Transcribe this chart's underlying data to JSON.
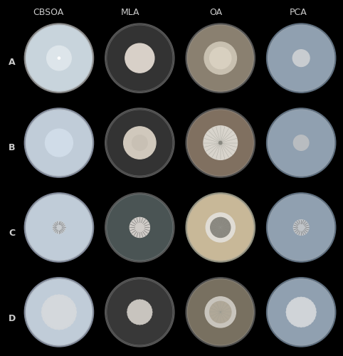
{
  "background_color": "#000000",
  "col_headers": [
    "CBSOA",
    "MLA",
    "OA",
    "PCA"
  ],
  "row_labels": [
    "A",
    "B",
    "C",
    "D"
  ],
  "header_color": "#cccccc",
  "label_color": "#cccccc",
  "header_fontsize": 9,
  "label_fontsize": 9,
  "petri_dishes": [
    [
      {
        "dish_color": "#b8c4cc",
        "dish_rim": "#888888",
        "agar_color": "#c8d4dc",
        "colony_color": "#dde5ea",
        "colony_r": 0.32,
        "colony2_color": null,
        "colony2_r": 0,
        "dot_color": "#ffffff",
        "dot_r": 0.03,
        "style": "plain"
      },
      {
        "dish_color": "#2a2a2a",
        "dish_rim": "#555555",
        "agar_color": "#333333",
        "colony_color": "#d8d0c8",
        "colony_r": 0.38,
        "colony2_color": null,
        "colony2_r": 0,
        "dot_color": null,
        "dot_r": 0,
        "style": "plain"
      },
      {
        "dish_color": "#7a7060",
        "dish_rim": "#555555",
        "agar_color": "#8a8070",
        "colony_color": "#c8c0b0",
        "colony_r": 0.42,
        "colony2_color": "#d8d0c0",
        "colony2_r": 0.28,
        "dot_color": null,
        "dot_r": 0,
        "style": "plain"
      },
      {
        "dish_color": "#8090a0",
        "dish_rim": "#607080",
        "agar_color": "#90a0b0",
        "colony_color": "#c8ccd0",
        "colony_r": 0.22,
        "colony2_color": null,
        "colony2_r": 0,
        "dot_color": null,
        "dot_r": 0,
        "style": "plain"
      }
    ],
    [
      {
        "dish_color": "#b0bcc8",
        "dish_rim": "#808898",
        "agar_color": "#c0ccd8",
        "colony_color": "#d0dce8",
        "colony_r": 0.36,
        "colony2_color": null,
        "colony2_r": 0,
        "dot_color": null,
        "dot_r": 0,
        "style": "plain"
      },
      {
        "dish_color": "#2a2a2a",
        "dish_rim": "#555555",
        "agar_color": "#333333",
        "colony_color": "#d0c8bc",
        "colony_r": 0.42,
        "colony2_color": "#c8c0b4",
        "colony2_r": 0.2,
        "dot_color": null,
        "dot_r": 0,
        "style": "plain"
      },
      {
        "dish_color": "#706858",
        "dish_rim": "#505050",
        "agar_color": "#807060",
        "colony_color": "#d8d4cc",
        "colony_r": 0.44,
        "colony2_color": null,
        "colony2_r": 0,
        "dot_color": "#888880",
        "dot_r": 0.04,
        "style": "radial"
      },
      {
        "dish_color": "#8090a0",
        "dish_rim": "#607080",
        "agar_color": "#90a0b0",
        "colony_color": "#b8bcc0",
        "colony_r": 0.2,
        "colony2_color": null,
        "colony2_r": 0,
        "dot_color": null,
        "dot_r": 0,
        "style": "plain"
      }
    ],
    [
      {
        "dish_color": "#b0bcc8",
        "dish_rim": "#808898",
        "agar_color": "#c0ccd8",
        "colony_color": "#c8ccd0",
        "colony_r": 0.16,
        "colony2_color": null,
        "colony2_r": 0,
        "dot_color": null,
        "dot_r": 0,
        "style": "spiky"
      },
      {
        "dish_color": "#404848",
        "dish_rim": "#555555",
        "agar_color": "#4a5454",
        "colony_color": "#d0ccc8",
        "colony_r": 0.26,
        "colony2_color": null,
        "colony2_r": 0,
        "dot_color": null,
        "dot_r": 0,
        "style": "spiky"
      },
      {
        "dish_color": "#c0b090",
        "dish_rim": "#909080",
        "agar_color": "#c8b898",
        "colony_color": "#e0dcd4",
        "colony_r": 0.38,
        "colony2_color": "#8a8880",
        "colony2_r": 0.26,
        "dot_color": null,
        "dot_r": 0,
        "style": "ring"
      },
      {
        "dish_color": "#8090a0",
        "dish_rim": "#607080",
        "agar_color": "#90a0b0",
        "colony_color": "#c0c4c8",
        "colony_r": 0.2,
        "colony2_color": null,
        "colony2_r": 0,
        "dot_color": null,
        "dot_r": 0,
        "style": "spiky"
      }
    ],
    [
      {
        "dish_color": "#b0bcc8",
        "dish_rim": "#808898",
        "agar_color": "#c0ccd8",
        "colony_color": "#d4d8dc",
        "colony_r": 0.42,
        "colony2_color": null,
        "colony2_r": 0,
        "dot_color": null,
        "dot_r": 0,
        "style": "fluffy"
      },
      {
        "dish_color": "#303030",
        "dish_rim": "#555555",
        "agar_color": "#383838",
        "colony_color": "#c8c4be",
        "colony_r": 0.3,
        "colony2_color": null,
        "colony2_r": 0,
        "dot_color": null,
        "dot_r": 0,
        "style": "fluffy"
      },
      {
        "dish_color": "#706858",
        "dish_rim": "#505050",
        "agar_color": "#787060",
        "colony_color": "#c8c4bc",
        "colony_r": 0.4,
        "colony2_color": "#b0a898",
        "colony2_r": 0.28,
        "dot_color": null,
        "dot_r": 0,
        "style": "ring"
      },
      {
        "dish_color": "#8090a0",
        "dish_rim": "#607080",
        "agar_color": "#90a0b0",
        "colony_color": "#d0d4d8",
        "colony_r": 0.36,
        "colony2_color": null,
        "colony2_r": 0,
        "dot_color": null,
        "dot_r": 0,
        "style": "fluffy"
      }
    ]
  ]
}
